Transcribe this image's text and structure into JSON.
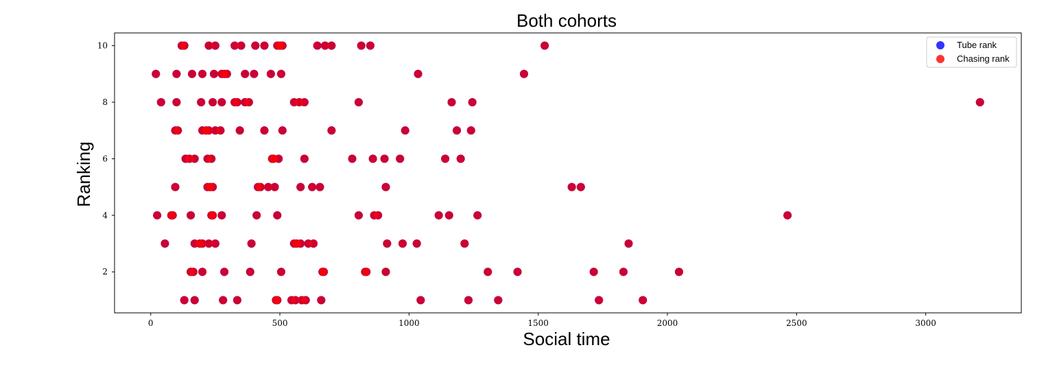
{
  "chart_data": {
    "type": "scatter",
    "title": "Both cohorts",
    "xlabel": "Social time",
    "ylabel": "Ranking",
    "xlim": [
      -140,
      3370
    ],
    "ylim": [
      0.55,
      10.45
    ],
    "xticks": [
      0,
      500,
      1000,
      1500,
      2000,
      2500,
      3000
    ],
    "yticks": [
      2,
      4,
      6,
      8,
      10
    ],
    "grid": false,
    "legend_position": "top-right",
    "series": [
      {
        "name": "Tube rank",
        "color": "#0000ff",
        "points": [
          [
            120,
            10
          ],
          [
            130,
            10
          ],
          [
            225,
            10
          ],
          [
            250,
            10
          ],
          [
            325,
            10
          ],
          [
            350,
            10
          ],
          [
            405,
            10
          ],
          [
            440,
            10
          ],
          [
            490,
            10
          ],
          [
            500,
            10
          ],
          [
            510,
            10
          ],
          [
            645,
            10
          ],
          [
            675,
            10
          ],
          [
            700,
            10
          ],
          [
            815,
            10
          ],
          [
            850,
            10
          ],
          [
            1525,
            10
          ],
          [
            20,
            9
          ],
          [
            100,
            9
          ],
          [
            160,
            9
          ],
          [
            200,
            9
          ],
          [
            245,
            9
          ],
          [
            275,
            9
          ],
          [
            285,
            9
          ],
          [
            295,
            9
          ],
          [
            365,
            9
          ],
          [
            400,
            9
          ],
          [
            465,
            9
          ],
          [
            505,
            9
          ],
          [
            1035,
            9
          ],
          [
            1445,
            9
          ],
          [
            40,
            8
          ],
          [
            100,
            8
          ],
          [
            195,
            8
          ],
          [
            240,
            8
          ],
          [
            275,
            8
          ],
          [
            325,
            8
          ],
          [
            335,
            8
          ],
          [
            365,
            8
          ],
          [
            380,
            8
          ],
          [
            555,
            8
          ],
          [
            575,
            8
          ],
          [
            595,
            8
          ],
          [
            805,
            8
          ],
          [
            1165,
            8
          ],
          [
            1245,
            8
          ],
          [
            3210,
            8
          ],
          [
            95,
            7
          ],
          [
            105,
            7
          ],
          [
            200,
            7
          ],
          [
            215,
            7
          ],
          [
            225,
            7
          ],
          [
            250,
            7
          ],
          [
            270,
            7
          ],
          [
            345,
            7
          ],
          [
            440,
            7
          ],
          [
            510,
            7
          ],
          [
            700,
            7
          ],
          [
            985,
            7
          ],
          [
            1185,
            7
          ],
          [
            1240,
            7
          ],
          [
            135,
            6
          ],
          [
            150,
            6
          ],
          [
            170,
            6
          ],
          [
            220,
            6
          ],
          [
            235,
            6
          ],
          [
            470,
            6
          ],
          [
            475,
            6
          ],
          [
            495,
            6
          ],
          [
            595,
            6
          ],
          [
            780,
            6
          ],
          [
            860,
            6
          ],
          [
            905,
            6
          ],
          [
            965,
            6
          ],
          [
            1140,
            6
          ],
          [
            1200,
            6
          ],
          [
            95,
            5
          ],
          [
            220,
            5
          ],
          [
            230,
            5
          ],
          [
            240,
            5
          ],
          [
            415,
            5
          ],
          [
            425,
            5
          ],
          [
            455,
            5
          ],
          [
            480,
            5
          ],
          [
            580,
            5
          ],
          [
            625,
            5
          ],
          [
            655,
            5
          ],
          [
            910,
            5
          ],
          [
            1630,
            5
          ],
          [
            1665,
            5
          ],
          [
            25,
            4
          ],
          [
            80,
            4
          ],
          [
            85,
            4
          ],
          [
            155,
            4
          ],
          [
            235,
            4
          ],
          [
            240,
            4
          ],
          [
            275,
            4
          ],
          [
            410,
            4
          ],
          [
            490,
            4
          ],
          [
            805,
            4
          ],
          [
            865,
            4
          ],
          [
            880,
            4
          ],
          [
            1115,
            4
          ],
          [
            1155,
            4
          ],
          [
            1265,
            4
          ],
          [
            2465,
            4
          ],
          [
            55,
            3
          ],
          [
            170,
            3
          ],
          [
            190,
            3
          ],
          [
            200,
            3
          ],
          [
            225,
            3
          ],
          [
            250,
            3
          ],
          [
            390,
            3
          ],
          [
            555,
            3
          ],
          [
            565,
            3
          ],
          [
            580,
            3
          ],
          [
            610,
            3
          ],
          [
            630,
            3
          ],
          [
            915,
            3
          ],
          [
            975,
            3
          ],
          [
            1030,
            3
          ],
          [
            1215,
            3
          ],
          [
            1850,
            3
          ],
          [
            155,
            2
          ],
          [
            165,
            2
          ],
          [
            200,
            2
          ],
          [
            285,
            2
          ],
          [
            385,
            2
          ],
          [
            505,
            2
          ],
          [
            665,
            2
          ],
          [
            670,
            2
          ],
          [
            830,
            2
          ],
          [
            835,
            2
          ],
          [
            910,
            2
          ],
          [
            1305,
            2
          ],
          [
            1420,
            2
          ],
          [
            1715,
            2
          ],
          [
            1830,
            2
          ],
          [
            2045,
            2
          ],
          [
            130,
            1
          ],
          [
            170,
            1
          ],
          [
            280,
            1
          ],
          [
            335,
            1
          ],
          [
            485,
            1
          ],
          [
            490,
            1
          ],
          [
            545,
            1
          ],
          [
            560,
            1
          ],
          [
            585,
            1
          ],
          [
            600,
            1
          ],
          [
            660,
            1
          ],
          [
            1045,
            1
          ],
          [
            1230,
            1
          ],
          [
            1345,
            1
          ],
          [
            1735,
            1
          ],
          [
            1905,
            1
          ]
        ]
      },
      {
        "name": "Chasing rank",
        "color": "#ff0000",
        "points": [
          [
            120,
            10
          ],
          [
            130,
            10
          ],
          [
            225,
            10
          ],
          [
            250,
            10
          ],
          [
            325,
            10
          ],
          [
            350,
            10
          ],
          [
            405,
            10
          ],
          [
            440,
            10
          ],
          [
            490,
            10
          ],
          [
            500,
            10
          ],
          [
            510,
            10
          ],
          [
            645,
            10
          ],
          [
            675,
            10
          ],
          [
            700,
            10
          ],
          [
            815,
            10
          ],
          [
            850,
            10
          ],
          [
            1525,
            10
          ],
          [
            20,
            9
          ],
          [
            100,
            9
          ],
          [
            160,
            9
          ],
          [
            200,
            9
          ],
          [
            245,
            9
          ],
          [
            275,
            9
          ],
          [
            285,
            9
          ],
          [
            295,
            9
          ],
          [
            365,
            9
          ],
          [
            400,
            9
          ],
          [
            465,
            9
          ],
          [
            505,
            9
          ],
          [
            1035,
            9
          ],
          [
            1445,
            9
          ],
          [
            40,
            8
          ],
          [
            100,
            8
          ],
          [
            195,
            8
          ],
          [
            240,
            8
          ],
          [
            275,
            8
          ],
          [
            325,
            8
          ],
          [
            335,
            8
          ],
          [
            365,
            8
          ],
          [
            380,
            8
          ],
          [
            555,
            8
          ],
          [
            575,
            8
          ],
          [
            595,
            8
          ],
          [
            805,
            8
          ],
          [
            1165,
            8
          ],
          [
            1245,
            8
          ],
          [
            3210,
            8
          ],
          [
            95,
            7
          ],
          [
            105,
            7
          ],
          [
            200,
            7
          ],
          [
            215,
            7
          ],
          [
            225,
            7
          ],
          [
            250,
            7
          ],
          [
            270,
            7
          ],
          [
            345,
            7
          ],
          [
            440,
            7
          ],
          [
            510,
            7
          ],
          [
            700,
            7
          ],
          [
            985,
            7
          ],
          [
            1185,
            7
          ],
          [
            1240,
            7
          ],
          [
            135,
            6
          ],
          [
            150,
            6
          ],
          [
            170,
            6
          ],
          [
            220,
            6
          ],
          [
            235,
            6
          ],
          [
            470,
            6
          ],
          [
            475,
            6
          ],
          [
            495,
            6
          ],
          [
            595,
            6
          ],
          [
            780,
            6
          ],
          [
            860,
            6
          ],
          [
            905,
            6
          ],
          [
            965,
            6
          ],
          [
            1140,
            6
          ],
          [
            1200,
            6
          ],
          [
            95,
            5
          ],
          [
            220,
            5
          ],
          [
            230,
            5
          ],
          [
            240,
            5
          ],
          [
            415,
            5
          ],
          [
            425,
            5
          ],
          [
            455,
            5
          ],
          [
            480,
            5
          ],
          [
            580,
            5
          ],
          [
            625,
            5
          ],
          [
            655,
            5
          ],
          [
            910,
            5
          ],
          [
            1630,
            5
          ],
          [
            1665,
            5
          ],
          [
            25,
            4
          ],
          [
            80,
            4
          ],
          [
            85,
            4
          ],
          [
            155,
            4
          ],
          [
            235,
            4
          ],
          [
            240,
            4
          ],
          [
            275,
            4
          ],
          [
            410,
            4
          ],
          [
            490,
            4
          ],
          [
            805,
            4
          ],
          [
            865,
            4
          ],
          [
            880,
            4
          ],
          [
            1115,
            4
          ],
          [
            1155,
            4
          ],
          [
            1265,
            4
          ],
          [
            2465,
            4
          ],
          [
            55,
            3
          ],
          [
            170,
            3
          ],
          [
            190,
            3
          ],
          [
            200,
            3
          ],
          [
            225,
            3
          ],
          [
            250,
            3
          ],
          [
            390,
            3
          ],
          [
            555,
            3
          ],
          [
            565,
            3
          ],
          [
            580,
            3
          ],
          [
            610,
            3
          ],
          [
            630,
            3
          ],
          [
            915,
            3
          ],
          [
            975,
            3
          ],
          [
            1030,
            3
          ],
          [
            1215,
            3
          ],
          [
            1850,
            3
          ],
          [
            155,
            2
          ],
          [
            165,
            2
          ],
          [
            200,
            2
          ],
          [
            285,
            2
          ],
          [
            385,
            2
          ],
          [
            505,
            2
          ],
          [
            665,
            2
          ],
          [
            670,
            2
          ],
          [
            830,
            2
          ],
          [
            835,
            2
          ],
          [
            910,
            2
          ],
          [
            1305,
            2
          ],
          [
            1420,
            2
          ],
          [
            1715,
            2
          ],
          [
            1830,
            2
          ],
          [
            2045,
            2
          ],
          [
            130,
            1
          ],
          [
            170,
            1
          ],
          [
            280,
            1
          ],
          [
            335,
            1
          ],
          [
            485,
            1
          ],
          [
            490,
            1
          ],
          [
            545,
            1
          ],
          [
            560,
            1
          ],
          [
            585,
            1
          ],
          [
            600,
            1
          ],
          [
            660,
            1
          ],
          [
            1045,
            1
          ],
          [
            1230,
            1
          ],
          [
            1345,
            1
          ],
          [
            1735,
            1
          ],
          [
            1905,
            1
          ]
        ]
      }
    ]
  }
}
